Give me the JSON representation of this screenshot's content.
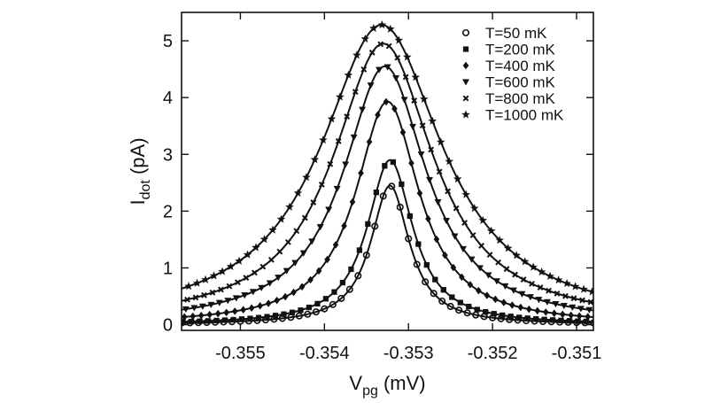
{
  "chart_data": {
    "type": "line",
    "title": "",
    "xlabel": "V",
    "xlabel_sub": "pg",
    "xlabel_unit": " (mV)",
    "ylabel": "I",
    "ylabel_sub": "dot",
    "ylabel_unit": " (pA)",
    "xlim": [
      -0.3557,
      -0.3508
    ],
    "ylim": [
      -0.1,
      5.5
    ],
    "xticks": [
      -0.355,
      -0.354,
      -0.353,
      -0.352,
      -0.351
    ],
    "xtick_labels": [
      "-0.355",
      "-0.354",
      "-0.353",
      "-0.352",
      "-0.351"
    ],
    "yticks": [
      0,
      1,
      2,
      3,
      4,
      5
    ],
    "ytick_labels": [
      "0",
      "1",
      "2",
      "3",
      "4",
      "5"
    ],
    "legend_position": "top-right",
    "series": [
      {
        "name": "T=50 mK",
        "marker": "circle",
        "peak_x": -0.35322,
        "peak_y": 2.45,
        "width": 0.00028
      },
      {
        "name": "T=200 mK",
        "marker": "square",
        "peak_x": -0.35322,
        "peak_y": 2.9,
        "width": 0.00033
      },
      {
        "name": "T=400 mK",
        "marker": "diamond",
        "peak_x": -0.35325,
        "peak_y": 3.93,
        "width": 0.00046
      },
      {
        "name": "T=600 mK",
        "marker": "triangle",
        "peak_x": -0.35328,
        "peak_y": 4.55,
        "width": 0.0006
      },
      {
        "name": "T=800 mK",
        "marker": "cross",
        "peak_x": -0.3533,
        "peak_y": 4.95,
        "width": 0.00073
      },
      {
        "name": "T=1000 mK",
        "marker": "star",
        "peak_x": -0.35332,
        "peak_y": 5.28,
        "width": 0.00088
      }
    ]
  },
  "colors": {
    "ink": "#111111",
    "background": "#ffffff"
  }
}
